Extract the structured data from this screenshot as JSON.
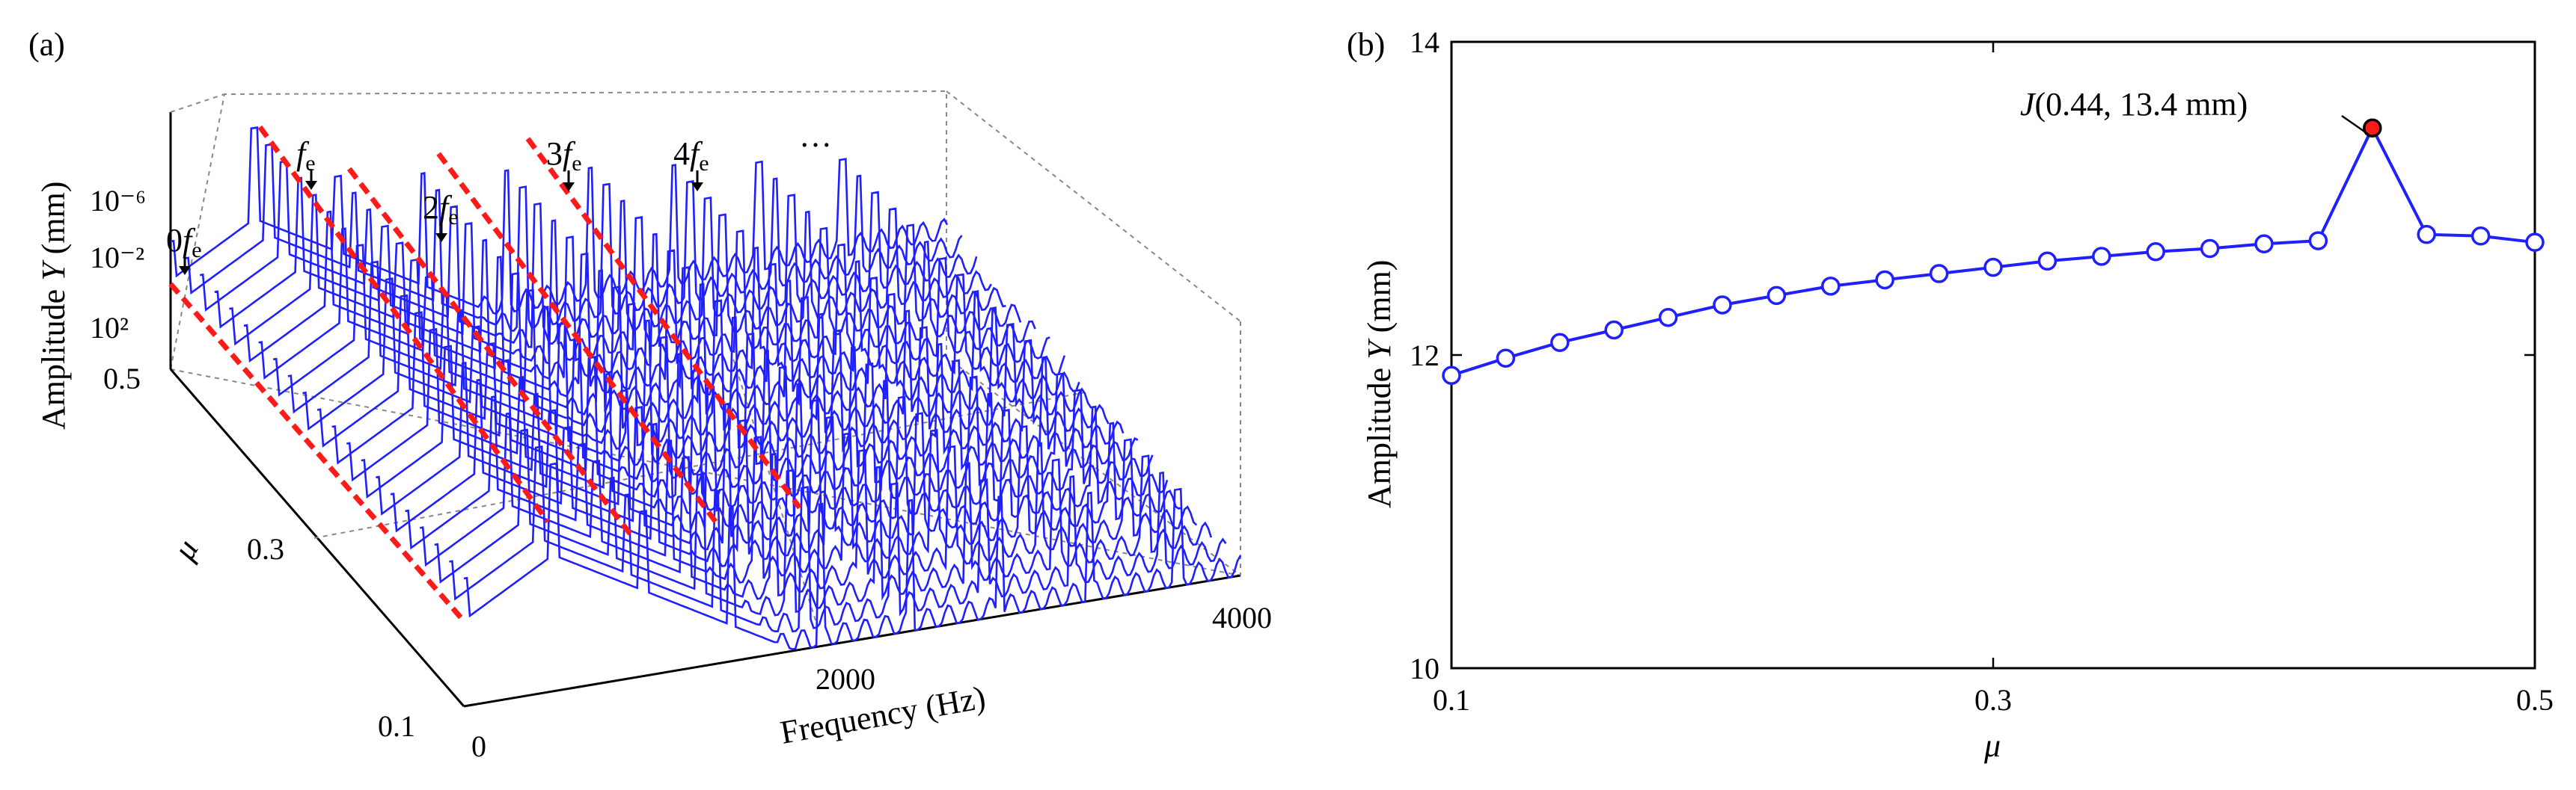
{
  "chart_data": [
    {
      "panel_label": "(a)",
      "type": "line",
      "kind": "waterfall-3d",
      "title": "",
      "xlabel": "Frequency (Hz)",
      "ylabel": "μ",
      "zlabel": "Amplitude Y (mm)",
      "zlabel_parts": [
        "Amplitude ",
        "Y",
        " (mm)"
      ],
      "x_ticks": [
        "0",
        "2000",
        "4000"
      ],
      "y_ticks": [
        "0.1",
        "0.3",
        "0.5"
      ],
      "z_ticks": [
        "10⁻⁶",
        "10⁻²",
        "10²"
      ],
      "xlim": [
        0,
        4000
      ],
      "ylim": [
        0.1,
        0.5
      ],
      "zscale": "log",
      "mu_values": [
        0.1,
        0.12,
        0.14,
        0.16,
        0.18,
        0.2,
        0.22,
        0.24,
        0.26,
        0.28,
        0.3,
        0.32,
        0.34,
        0.36,
        0.38,
        0.4,
        0.42,
        0.44,
        0.46,
        0.48,
        0.5
      ],
      "base_frequency_hz": 460,
      "harmonic_annotations": [
        {
          "prefix": "0",
          "symbol": "f",
          "sub": "e"
        },
        {
          "prefix": "",
          "symbol": "f",
          "sub": "e"
        },
        {
          "prefix": "2",
          "symbol": "f",
          "sub": "e"
        },
        {
          "prefix": "3",
          "symbol": "f",
          "sub": "e"
        },
        {
          "prefix": "4",
          "symbol": "f",
          "sub": "e"
        },
        {
          "prefix": "…",
          "symbol": "",
          "sub": ""
        }
      ],
      "series_color": "#1f1fff",
      "ridge_color": "#ff1a1a"
    },
    {
      "panel_label": "(b)",
      "type": "line",
      "title": "",
      "xlabel": "μ",
      "ylabel": "Amplitude Y (mm)",
      "ylabel_parts": [
        "Amplitude ",
        "Y",
        " (mm)"
      ],
      "xlim": [
        0.1,
        0.5
      ],
      "ylim": [
        10,
        14
      ],
      "x_ticks": [
        "0.1",
        "0.3",
        "0.5"
      ],
      "x_tick_values": [
        0.1,
        0.3,
        0.5
      ],
      "y_ticks": [
        "10",
        "12",
        "14"
      ],
      "y_tick_values": [
        10,
        12,
        14
      ],
      "x": [
        0.1,
        0.12,
        0.14,
        0.16,
        0.18,
        0.2,
        0.22,
        0.24,
        0.26,
        0.28,
        0.3,
        0.32,
        0.34,
        0.36,
        0.38,
        0.4,
        0.42,
        0.44,
        0.46,
        0.48,
        0.5
      ],
      "values": [
        11.87,
        11.98,
        12.08,
        12.16,
        12.24,
        12.32,
        12.38,
        12.44,
        12.48,
        12.52,
        12.56,
        12.6,
        12.63,
        12.66,
        12.68,
        12.71,
        12.73,
        13.45,
        12.77,
        12.76,
        12.72
      ],
      "series_color": "#1f1fff",
      "highlight": {
        "x": 0.44,
        "y": 13.45,
        "label_prefix": "J",
        "label_rest": "(0.44, 13.4 mm)",
        "color": "#ff1a1a"
      }
    }
  ]
}
